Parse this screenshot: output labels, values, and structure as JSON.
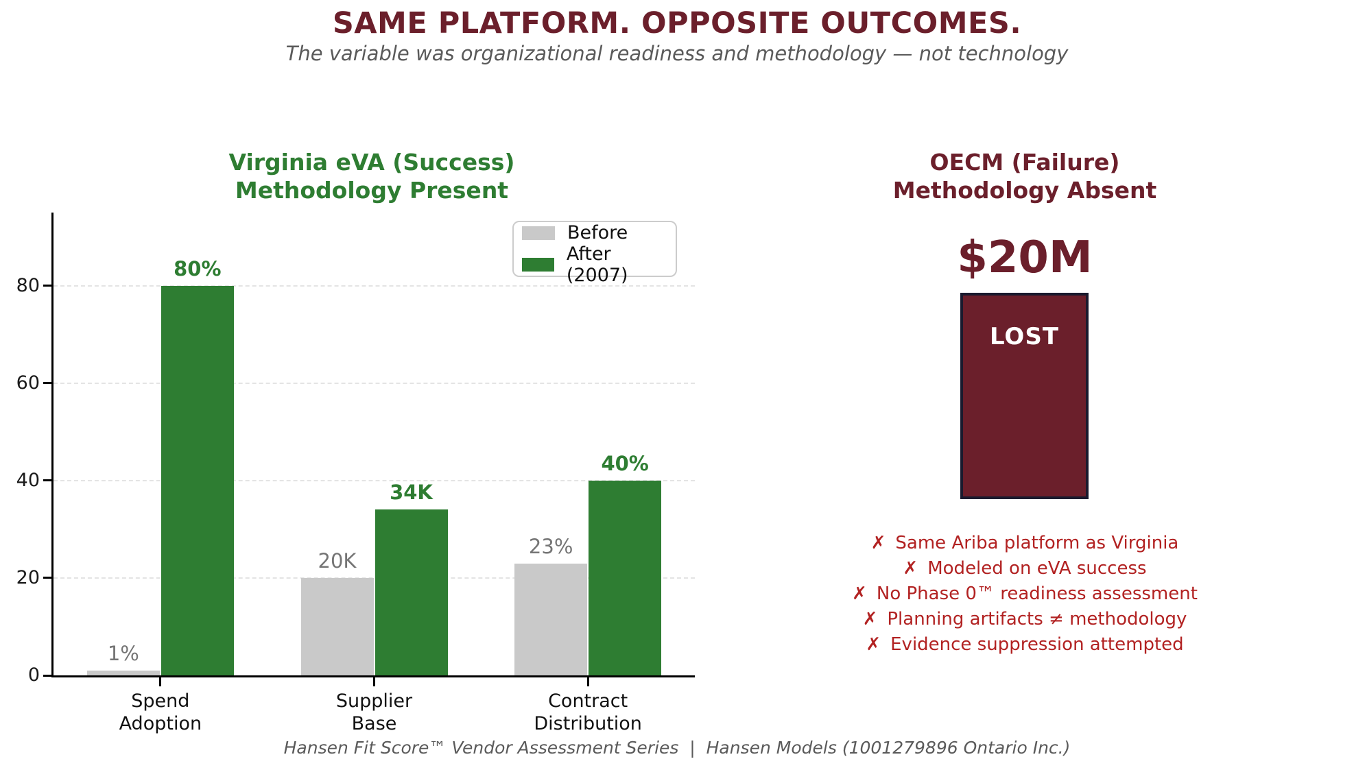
{
  "header": {
    "title": "SAME PLATFORM. OPPOSITE OUTCOMES.",
    "subtitle": "The variable was organizational readiness and methodology — not technology"
  },
  "left_panel": {
    "title_line1": "Virginia eVA (Success)",
    "title_line2": "Methodology Present"
  },
  "chart_data": {
    "type": "bar",
    "title": "Virginia eVA (Success) Methodology Present",
    "categories": [
      "Spend\nAdoption",
      "Supplier\nBase",
      "Contract\nDistribution"
    ],
    "series": [
      {
        "name": "Before",
        "color": "#c9c9c9",
        "values": [
          1,
          20,
          23
        ],
        "labels": [
          "1%",
          "20K",
          "23%"
        ]
      },
      {
        "name": "After (2007)",
        "color": "#2e7d32",
        "values": [
          80,
          34,
          40
        ],
        "labels": [
          "80%",
          "34K",
          "40%"
        ]
      }
    ],
    "ylim": [
      0,
      95
    ],
    "y_ticks": [
      0,
      20,
      40,
      60,
      80
    ],
    "grid": "horizontal dashed",
    "legend_position": "upper right"
  },
  "right_panel": {
    "title_line1": "OECM (Failure)",
    "title_line2": "Methodology Absent",
    "amount": "$20M",
    "box_label": "LOST",
    "bullet_glyph": "✗",
    "items": [
      "Same Ariba platform as Virginia",
      "Modeled on eVA success",
      "No Phase 0™ readiness assessment",
      "Planning artifacts ≠ methodology",
      "Evidence suppression attempted"
    ]
  },
  "footer": {
    "text": "Hansen Fit Score™ Vendor Assessment Series  |  Hansen Models (1001279896 Ontario Inc.)"
  },
  "colors": {
    "maroon": "#6b1f2b",
    "green": "#2e7d32",
    "gray_bar": "#c9c9c9",
    "red_list": "#b22222",
    "box_border": "#1a1a2e",
    "muted_text": "#5a5a5a",
    "value_gray": "#757575"
  }
}
